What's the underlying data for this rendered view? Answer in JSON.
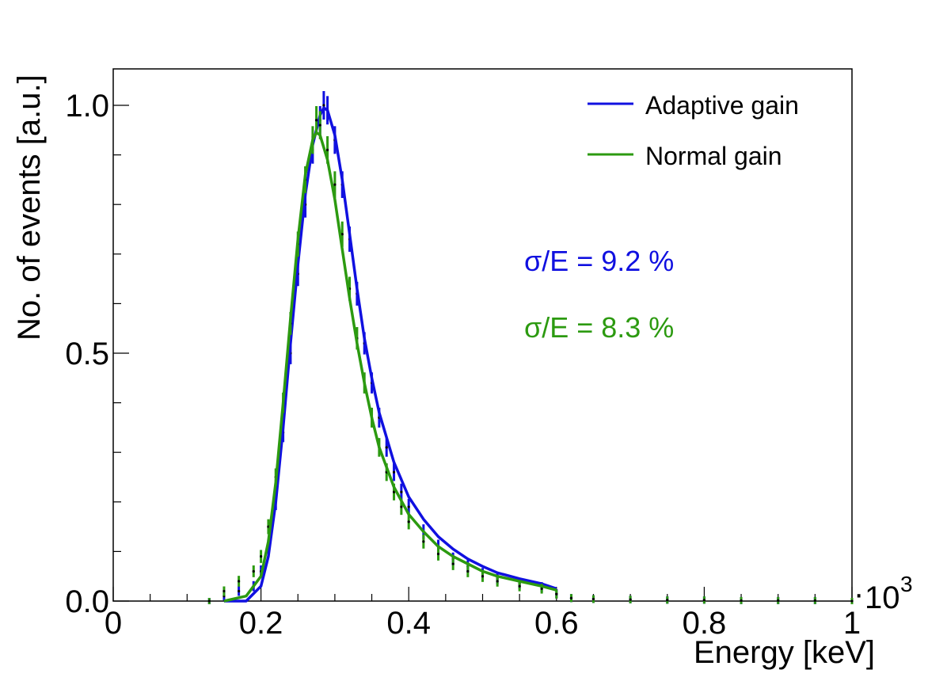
{
  "chart_data": {
    "type": "line",
    "title": "",
    "xlabel": "Energy [keV]",
    "ylabel": "No. of events [a.u.]",
    "x_multiplier_label": "10",
    "x_multiplier_exponent": "3",
    "x_multiplier_dot": "·",
    "xlim": [
      0,
      1
    ],
    "ylim": [
      0,
      1.05
    ],
    "x_tick_labels": [
      {
        "value": 0,
        "label": "0"
      },
      {
        "value": 0.2,
        "label": "0.2"
      },
      {
        "value": 0.4,
        "label": "0.4"
      },
      {
        "value": 0.6,
        "label": "0.6"
      },
      {
        "value": 0.8,
        "label": "0.8"
      },
      {
        "value": 1.0,
        "label": "1"
      }
    ],
    "y_tick_labels": [
      {
        "value": 0,
        "label": "0.0"
      },
      {
        "value": 0.5,
        "label": "0.5"
      },
      {
        "value": 1.0,
        "label": "1.0"
      }
    ],
    "grid": false,
    "legend_position": "top-right",
    "series": [
      {
        "name": "Adaptive gain",
        "color": "#1010e0",
        "data_x": [
          0.13,
          0.15,
          0.17,
          0.19,
          0.2,
          0.21,
          0.22,
          0.23,
          0.24,
          0.25,
          0.26,
          0.27,
          0.28,
          0.285,
          0.29,
          0.3,
          0.31,
          0.32,
          0.33,
          0.34,
          0.35,
          0.36,
          0.37,
          0.38,
          0.39,
          0.4,
          0.42,
          0.44,
          0.46,
          0.48,
          0.5,
          0.52,
          0.55,
          0.58,
          0.6,
          0.62,
          0.65,
          0.7,
          0.75,
          0.8,
          0.85,
          0.9,
          0.95,
          1.0
        ],
        "data_y": [
          0.0,
          0.01,
          0.02,
          0.03,
          0.06,
          0.11,
          0.2,
          0.34,
          0.5,
          0.66,
          0.8,
          0.91,
          0.97,
          1.0,
          0.99,
          0.93,
          0.84,
          0.73,
          0.62,
          0.52,
          0.44,
          0.37,
          0.31,
          0.26,
          0.22,
          0.19,
          0.14,
          0.11,
          0.085,
          0.07,
          0.055,
          0.045,
          0.035,
          0.028,
          0.015,
          0.006,
          0.004,
          0.003,
          0.002,
          0.002,
          0.001,
          0.001,
          0.001,
          0.0
        ],
        "fit_x": [
          0.15,
          0.18,
          0.2,
          0.21,
          0.22,
          0.23,
          0.24,
          0.25,
          0.26,
          0.27,
          0.28,
          0.285,
          0.29,
          0.3,
          0.31,
          0.32,
          0.33,
          0.34,
          0.35,
          0.36,
          0.38,
          0.4,
          0.42,
          0.44,
          0.46,
          0.48,
          0.5,
          0.52,
          0.55,
          0.58,
          0.6
        ],
        "fit_y": [
          0.0,
          0.0,
          0.03,
          0.09,
          0.2,
          0.35,
          0.52,
          0.68,
          0.82,
          0.92,
          0.98,
          0.995,
          0.99,
          0.94,
          0.85,
          0.74,
          0.63,
          0.53,
          0.45,
          0.38,
          0.28,
          0.21,
          0.165,
          0.13,
          0.105,
          0.085,
          0.07,
          0.057,
          0.045,
          0.035,
          0.025
        ],
        "annotation": "σ/E = 9.2 %"
      },
      {
        "name": "Normal gain",
        "color": "#2c9a10",
        "data_x": [
          0.13,
          0.15,
          0.17,
          0.19,
          0.2,
          0.21,
          0.22,
          0.23,
          0.24,
          0.25,
          0.26,
          0.27,
          0.275,
          0.28,
          0.29,
          0.3,
          0.31,
          0.32,
          0.33,
          0.34,
          0.35,
          0.36,
          0.37,
          0.38,
          0.39,
          0.4,
          0.42,
          0.44,
          0.46,
          0.48,
          0.5,
          0.52,
          0.55,
          0.58,
          0.6,
          0.62,
          0.65,
          0.7,
          0.75,
          0.8,
          0.85,
          0.9,
          0.95,
          1.0
        ],
        "data_y": [
          0.0,
          0.02,
          0.04,
          0.06,
          0.09,
          0.15,
          0.25,
          0.4,
          0.56,
          0.72,
          0.85,
          0.93,
          0.97,
          0.96,
          0.91,
          0.84,
          0.74,
          0.63,
          0.53,
          0.44,
          0.37,
          0.31,
          0.26,
          0.22,
          0.19,
          0.16,
          0.12,
          0.095,
          0.075,
          0.06,
          0.05,
          0.04,
          0.03,
          0.025,
          0.014,
          0.006,
          0.004,
          0.003,
          0.002,
          0.002,
          0.001,
          0.001,
          0.001,
          0.0
        ],
        "fit_x": [
          0.15,
          0.18,
          0.2,
          0.21,
          0.22,
          0.23,
          0.24,
          0.25,
          0.26,
          0.27,
          0.275,
          0.28,
          0.29,
          0.3,
          0.31,
          0.32,
          0.33,
          0.34,
          0.35,
          0.36,
          0.38,
          0.4,
          0.42,
          0.44,
          0.46,
          0.48,
          0.5,
          0.52,
          0.55,
          0.58,
          0.6
        ],
        "fit_y": [
          0.0,
          0.01,
          0.05,
          0.12,
          0.24,
          0.4,
          0.57,
          0.73,
          0.86,
          0.93,
          0.945,
          0.94,
          0.89,
          0.81,
          0.71,
          0.61,
          0.52,
          0.44,
          0.37,
          0.31,
          0.23,
          0.175,
          0.14,
          0.11,
          0.09,
          0.075,
          0.06,
          0.05,
          0.04,
          0.03,
          0.022
        ],
        "annotation": "σ/E = 8.3 %"
      }
    ]
  }
}
